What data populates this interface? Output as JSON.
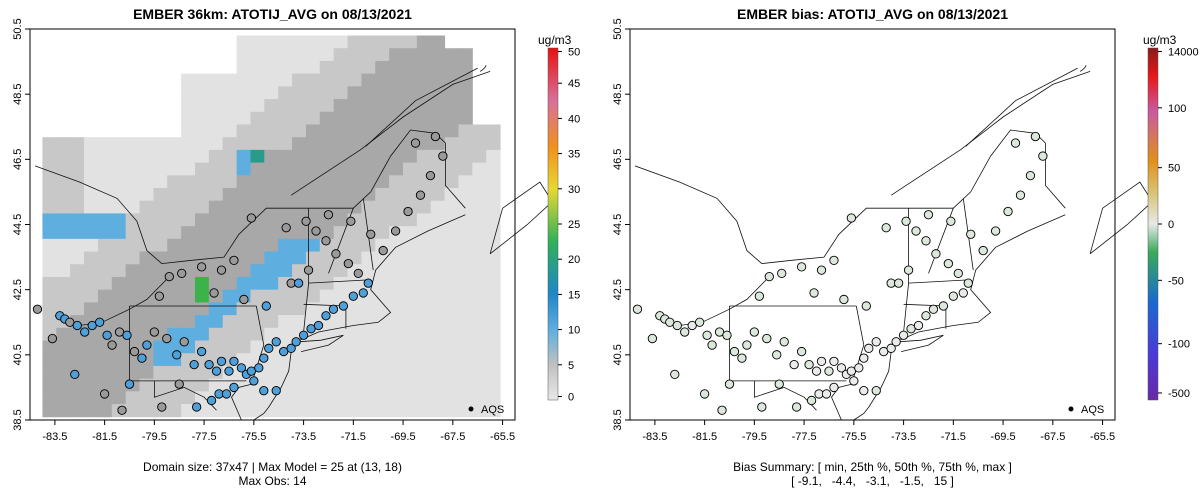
{
  "left": {
    "title": "EMBER 36km: ATOTIJ_AVG on 08/13/2021",
    "footer_line1": "Domain size: 37x47 | Max Model = 25 at (13, 18)",
    "footer_line2": "Max Obs: 14",
    "colorbar_unit": "ug/m3",
    "colorbar_ticks": [
      "0",
      "5",
      "10",
      "15",
      "20",
      "25",
      "30",
      "35",
      "40",
      "45",
      "50"
    ],
    "legend_label": "AQS"
  },
  "right": {
    "title": "EMBER bias: ATOTIJ_AVG on 08/13/2021",
    "footer_line1": "Bias Summary: [ min, 25th %, 50th %, 75th %, max ]",
    "footer_line2": "[ -9.1,   -4.4,   -3.1,   -1.5,   15 ]",
    "colorbar_unit": "ug/m3",
    "colorbar_ticks": [
      "14000",
      "100",
      "50",
      "0",
      "-50",
      "-100",
      "-500"
    ],
    "legend_label": "AQS"
  },
  "axes": {
    "lat_ticks": [
      "38.5",
      "40.5",
      "42.5",
      "44.5",
      "46.5",
      "48.5",
      "50.5"
    ],
    "lon_ticks": [
      "-83.5",
      "-81.5",
      "-79.5",
      "-77.5",
      "-75.5",
      "-73.5",
      "-71.5",
      "-69.5",
      "-67.5",
      "-65.5"
    ],
    "lat_range": [
      38.5,
      50.5
    ],
    "lon_range": [
      -84.5,
      -65.0
    ]
  },
  "colors": {
    "grid_low": "#e2e2e2",
    "grid_mid": "#c8c8c8",
    "grid_high": "#a8a8a8",
    "plume_blue": "#5eaee0",
    "plume_teal": "#2a9a8a",
    "plume_green": "#3cb24a",
    "obs_blue": "#4f9fd8",
    "obs_gray": "#9a9a9a",
    "bias_near_zero": "#dde8dd"
  },
  "stations": [
    [
      -83.3,
      41.7,
      9
    ],
    [
      -83.1,
      41.6,
      10
    ],
    [
      -82.9,
      41.5,
      8
    ],
    [
      -82.6,
      41.4,
      9
    ],
    [
      -82.3,
      41.2,
      10
    ],
    [
      -82.0,
      41.4,
      11
    ],
    [
      -81.7,
      41.5,
      10
    ],
    [
      -81.4,
      41.1,
      9
    ],
    [
      -81.2,
      40.8,
      8
    ],
    [
      -80.9,
      41.2,
      7
    ],
    [
      -80.6,
      41.1,
      9
    ],
    [
      -80.3,
      40.6,
      8
    ],
    [
      -80.0,
      40.4,
      10
    ],
    [
      -79.8,
      40.8,
      9
    ],
    [
      -79.5,
      41.2,
      6
    ],
    [
      -79.0,
      41.0,
      8
    ],
    [
      -78.6,
      40.5,
      9
    ],
    [
      -78.3,
      40.9,
      8
    ],
    [
      -77.9,
      40.2,
      11
    ],
    [
      -77.6,
      40.6,
      10
    ],
    [
      -77.3,
      40.2,
      9
    ],
    [
      -77.0,
      40.0,
      12
    ],
    [
      -76.8,
      40.3,
      11
    ],
    [
      -76.5,
      40.0,
      10
    ],
    [
      -76.3,
      40.3,
      12
    ],
    [
      -76.0,
      40.1,
      11
    ],
    [
      -75.8,
      39.9,
      13
    ],
    [
      -75.6,
      40.0,
      12
    ],
    [
      -75.3,
      40.1,
      13
    ],
    [
      -75.1,
      40.4,
      11
    ],
    [
      -74.9,
      40.7,
      12
    ],
    [
      -74.6,
      40.9,
      13
    ],
    [
      -74.3,
      40.6,
      14
    ],
    [
      -74.0,
      40.7,
      13
    ],
    [
      -73.8,
      40.9,
      12
    ],
    [
      -73.5,
      41.1,
      11
    ],
    [
      -73.2,
      41.3,
      10
    ],
    [
      -72.9,
      41.4,
      11
    ],
    [
      -72.6,
      41.7,
      10
    ],
    [
      -72.3,
      41.9,
      9
    ],
    [
      -71.9,
      42.0,
      9
    ],
    [
      -71.5,
      42.3,
      10
    ],
    [
      -71.1,
      42.4,
      11
    ],
    [
      -70.9,
      42.7,
      9
    ],
    [
      -71.3,
      43.0,
      8
    ],
    [
      -71.7,
      43.3,
      7
    ],
    [
      -72.2,
      43.6,
      8
    ],
    [
      -72.6,
      44.0,
      7
    ],
    [
      -73.0,
      44.3,
      6
    ],
    [
      -73.4,
      44.6,
      5
    ],
    [
      -72.5,
      44.8,
      6
    ],
    [
      -71.6,
      44.6,
      5
    ],
    [
      -70.8,
      44.2,
      6
    ],
    [
      -70.3,
      43.7,
      7
    ],
    [
      -69.8,
      44.3,
      5
    ],
    [
      -69.3,
      44.9,
      4
    ],
    [
      -68.8,
      45.4,
      4
    ],
    [
      -68.4,
      46.0,
      5
    ],
    [
      -67.9,
      46.6,
      6
    ],
    [
      -68.2,
      47.2,
      5
    ],
    [
      -69.0,
      47.0,
      4
    ],
    [
      -74.2,
      44.4,
      5
    ],
    [
      -75.6,
      44.7,
      6
    ],
    [
      -76.3,
      43.4,
      7
    ],
    [
      -76.8,
      43.1,
      6
    ],
    [
      -77.6,
      43.2,
      7
    ],
    [
      -78.4,
      43.0,
      6
    ],
    [
      -78.9,
      42.9,
      7
    ],
    [
      -79.3,
      42.3,
      8
    ],
    [
      -77.1,
      42.4,
      6
    ],
    [
      -75.9,
      42.2,
      8
    ],
    [
      -75.0,
      42.0,
      9
    ],
    [
      -74.0,
      42.7,
      8
    ],
    [
      -73.7,
      42.7,
      9
    ],
    [
      -73.3,
      43.1,
      8
    ],
    [
      -77.2,
      39.1,
      10
    ],
    [
      -76.9,
      39.3,
      11
    ],
    [
      -76.6,
      39.3,
      12
    ],
    [
      -76.3,
      39.5,
      11
    ],
    [
      -75.5,
      39.7,
      12
    ],
    [
      -75.1,
      39.4,
      11
    ],
    [
      -74.6,
      39.4,
      10
    ],
    [
      -78.5,
      39.6,
      8
    ],
    [
      -80.5,
      39.6,
      9
    ],
    [
      -81.5,
      39.3,
      7
    ],
    [
      -82.7,
      39.9,
      9
    ],
    [
      -83.6,
      41.0,
      6
    ],
    [
      -84.2,
      41.9,
      5
    ],
    [
      -80.8,
      38.8,
      6
    ],
    [
      -79.2,
      38.9,
      7
    ],
    [
      -77.8,
      38.9,
      10
    ]
  ]
}
